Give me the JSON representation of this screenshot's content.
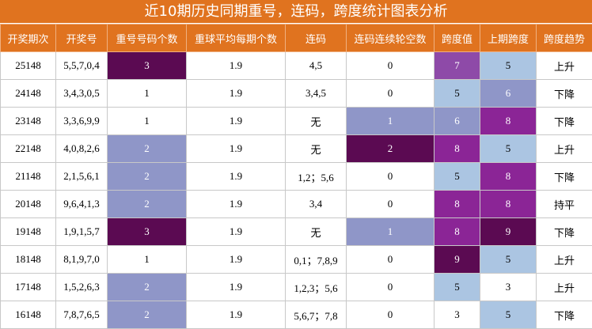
{
  "title": "近10期历史同期重号，连码，跨度统计图表分析",
  "table": {
    "header": [
      "开奖期次",
      "开奖号",
      "重号号码个数",
      "重球平均每期个数",
      "连码",
      "连码连续轮空数",
      "跨度值",
      "上期跨度",
      "跨度趋势"
    ],
    "rows": [
      [
        "25148",
        "5,5,7,0,4",
        "3",
        "1.9",
        "4,5",
        "0",
        "7",
        "5",
        "上升"
      ],
      [
        "24148",
        "3,4,3,0,5",
        "1",
        "1.9",
        "3,4,5",
        "0",
        "5",
        "6",
        "下降"
      ],
      [
        "23148",
        "3,3,6,9,9",
        "1",
        "1.9",
        "无",
        "1",
        "6",
        "8",
        "下降"
      ],
      [
        "22148",
        "4,0,8,2,6",
        "2",
        "1.9",
        "无",
        "2",
        "8",
        "5",
        "上升"
      ],
      [
        "21148",
        "2,1,5,6,1",
        "2",
        "1.9",
        "1,2；5,6",
        "0",
        "5",
        "8",
        "下降"
      ],
      [
        "20148",
        "9,6,4,1,3",
        "2",
        "1.9",
        "3,4",
        "0",
        "8",
        "8",
        "持平"
      ],
      [
        "19148",
        "1,9,1,5,7",
        "3",
        "1.9",
        "无",
        "1",
        "8",
        "9",
        "下降"
      ],
      [
        "18148",
        "8,1,9,7,0",
        "1",
        "1.9",
        "0,1；7,8,9",
        "0",
        "9",
        "5",
        "上升"
      ],
      [
        "17148",
        "1,5,2,6,3",
        "2",
        "1.9",
        "1,2,3；5,6",
        "0",
        "5",
        "3",
        "上升"
      ],
      [
        "16148",
        "7,8,7,6,5",
        "2",
        "1.9",
        "5,6,7；7,8",
        "0",
        "3",
        "5",
        "下降"
      ]
    ],
    "fills": [
      [
        null,
        null,
        "#5b0a52",
        null,
        null,
        null,
        "#8e4aa8",
        "#abc5e2",
        null
      ],
      [
        null,
        null,
        null,
        null,
        null,
        null,
        "#abc5e2",
        "#8f96c8",
        null
      ],
      [
        null,
        null,
        null,
        null,
        null,
        "#8f96c8",
        "#8f96c8",
        "#8b2596",
        null
      ],
      [
        null,
        null,
        "#8f96c8",
        null,
        null,
        "#5b0a52",
        "#8b2596",
        "#abc5e2",
        null
      ],
      [
        null,
        null,
        "#8f96c8",
        null,
        null,
        null,
        "#abc5e2",
        "#8b2596",
        null
      ],
      [
        null,
        null,
        "#8f96c8",
        null,
        null,
        null,
        "#8b2596",
        "#8b2596",
        null
      ],
      [
        null,
        null,
        "#5b0a52",
        null,
        null,
        "#8f96c8",
        "#8b2596",
        "#5b0a52",
        null
      ],
      [
        null,
        null,
        null,
        null,
        null,
        null,
        "#5b0a52",
        "#abc5e2",
        null
      ],
      [
        null,
        null,
        "#8f96c8",
        null,
        null,
        null,
        "#abc5e2",
        null,
        null
      ],
      [
        null,
        null,
        "#8f96c8",
        null,
        null,
        null,
        null,
        "#abc5e2",
        null
      ]
    ]
  }
}
